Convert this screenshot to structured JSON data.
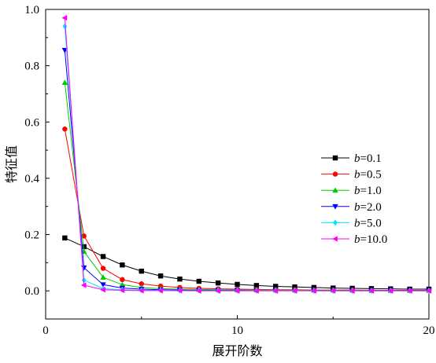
{
  "chart_data": {
    "type": "line",
    "xlabel": "展开阶数",
    "ylabel": "特征值",
    "xlim": [
      0,
      20
    ],
    "ylim": [
      -0.1,
      1.0
    ],
    "xticks": [
      "0",
      "10",
      "20"
    ],
    "yticks": [
      "0.0",
      "0.2",
      "0.4",
      "0.6",
      "0.8",
      "1.0"
    ],
    "legend_position": "right",
    "x": [
      1,
      2,
      3,
      4,
      5,
      6,
      7,
      8,
      9,
      10,
      11,
      12,
      13,
      14,
      15,
      16,
      17,
      18,
      19,
      20
    ],
    "series": [
      {
        "name_prefix": "b",
        "name_value": "=0.1",
        "marker": "square",
        "color": "#000000",
        "values": [
          0.188,
          0.157,
          0.122,
          0.092,
          0.07,
          0.053,
          0.042,
          0.034,
          0.028,
          0.023,
          0.019,
          0.016,
          0.014,
          0.012,
          0.01,
          0.009,
          0.008,
          0.007,
          0.006,
          0.006
        ]
      },
      {
        "name_prefix": "b",
        "name_value": "=0.5",
        "marker": "circle",
        "color": "#ff0000",
        "values": [
          0.575,
          0.195,
          0.08,
          0.04,
          0.025,
          0.017,
          0.012,
          0.009,
          0.007,
          0.006,
          0.005,
          0.004,
          0.004,
          0.003,
          0.003,
          0.003,
          0.002,
          0.002,
          0.002,
          0.002
        ]
      },
      {
        "name_prefix": "b",
        "name_value": "=1.0",
        "marker": "triangle-up",
        "color": "#00cc00",
        "values": [
          0.74,
          0.14,
          0.048,
          0.022,
          0.012,
          0.008,
          0.006,
          0.005,
          0.004,
          0.003,
          0.003,
          0.002,
          0.002,
          0.002,
          0.002,
          0.002,
          0.001,
          0.001,
          0.001,
          0.001
        ]
      },
      {
        "name_prefix": "b",
        "name_value": "=2.0",
        "marker": "triangle-down",
        "color": "#0000ff",
        "values": [
          0.855,
          0.082,
          0.022,
          0.01,
          0.006,
          0.004,
          0.003,
          0.002,
          0.002,
          0.002,
          0.001,
          0.001,
          0.001,
          0.001,
          0.001,
          0.001,
          0.001,
          0.001,
          0.001,
          0.001
        ]
      },
      {
        "name_prefix": "b",
        "name_value": "=5.0",
        "marker": "diamond",
        "color": "#00e5ff",
        "values": [
          0.94,
          0.038,
          0.008,
          0.004,
          0.002,
          0.002,
          0.001,
          0.001,
          0.001,
          0.001,
          0.001,
          0.001,
          0.001,
          0.0,
          0.0,
          0.0,
          0.0,
          0.0,
          0.0,
          0.0
        ]
      },
      {
        "name_prefix": "b",
        "name_value": "=10.0",
        "marker": "triangle-left",
        "color": "#ff00ff",
        "values": [
          0.97,
          0.02,
          0.004,
          0.002,
          0.001,
          0.001,
          0.001,
          0.0,
          0.0,
          0.0,
          0.0,
          0.0,
          0.0,
          0.0,
          0.0,
          0.0,
          0.0,
          0.0,
          0.0,
          0.0
        ]
      }
    ]
  }
}
